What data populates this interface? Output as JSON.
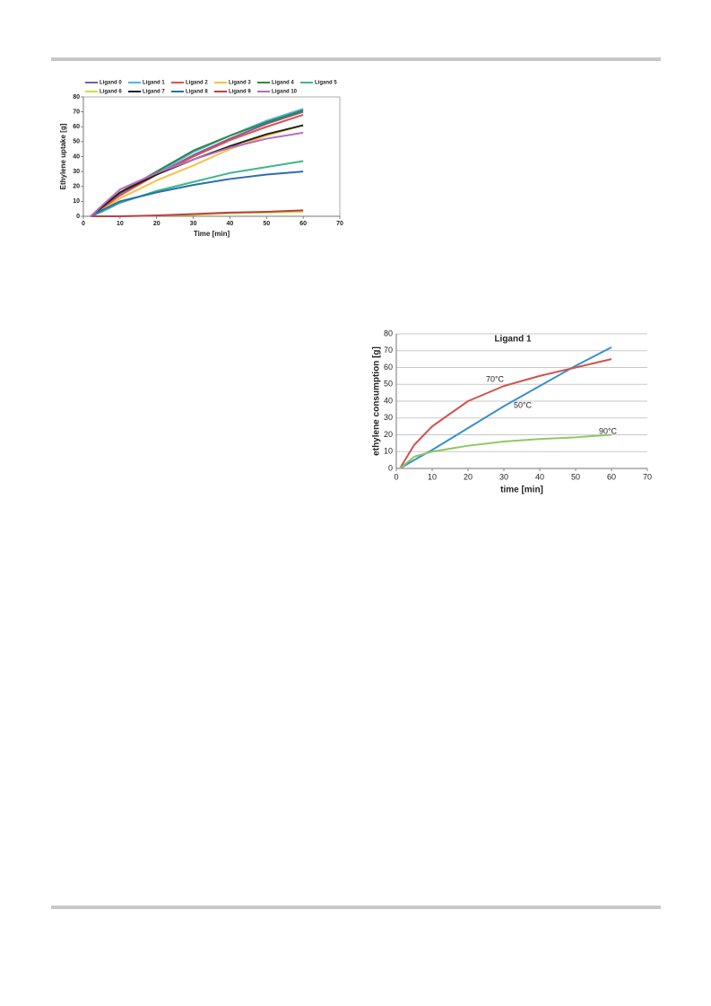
{
  "chart_data": [
    {
      "type": "line",
      "xlabel": "Time [min]",
      "ylabel": "Ethylene uptake [g]",
      "x": [
        2,
        5,
        10,
        20,
        30,
        40,
        50,
        60
      ],
      "xlim": [
        0,
        70
      ],
      "xticks": [
        0,
        10,
        20,
        30,
        40,
        50,
        60,
        70
      ],
      "ylim": [
        0,
        80
      ],
      "yticks": [
        0,
        10,
        20,
        30,
        40,
        50,
        60,
        70,
        80
      ],
      "grid": false,
      "legend": "top",
      "series": [
        {
          "name": "Ligand 0",
          "color": "#7b5ea7",
          "values": [
            0,
            5,
            15,
            28,
            41,
            52,
            62,
            70
          ]
        },
        {
          "name": "Ligand 1",
          "color": "#4fb3e8",
          "values": [
            0,
            5,
            14,
            29,
            43,
            54,
            64,
            72
          ]
        },
        {
          "name": "Ligand 2",
          "color": "#e0504a",
          "values": [
            0,
            5,
            14,
            28,
            40,
            51,
            60,
            68
          ]
        },
        {
          "name": "Ligand 3",
          "color": "#f5c242",
          "values": [
            0,
            4,
            12,
            24,
            34,
            45,
            54,
            61
          ]
        },
        {
          "name": "Ligand 4",
          "color": "#2e8a3e",
          "values": [
            0,
            6,
            16,
            30,
            44,
            54,
            63,
            71
          ]
        },
        {
          "name": "Ligand 5",
          "color": "#3cb98a",
          "values": [
            0,
            3,
            9,
            17,
            23,
            29,
            33,
            37
          ]
        },
        {
          "name": "Ligand 6",
          "color": "#d4dc3a",
          "values": [
            0,
            0,
            0,
            0.5,
            1,
            2,
            2.5,
            3
          ]
        },
        {
          "name": "Ligand 7",
          "color": "#222222",
          "values": [
            0,
            6,
            16,
            28,
            38,
            47,
            55,
            61
          ]
        },
        {
          "name": "Ligand 8",
          "color": "#2a6db5",
          "values": [
            0,
            4,
            10,
            16,
            21,
            25,
            28,
            30
          ]
        },
        {
          "name": "Ligand 9",
          "color": "#b5424a",
          "values": [
            0,
            0,
            0,
            0.5,
            1.5,
            2.5,
            3,
            4
          ]
        },
        {
          "name": "Ligand 10",
          "color": "#b56cc0",
          "values": [
            0,
            7,
            18,
            29,
            38,
            46,
            52,
            56
          ]
        }
      ]
    },
    {
      "type": "line",
      "title": "Ligand 1",
      "xlabel": "time [min]",
      "ylabel": "ethylene consumption [g]",
      "x": [
        1,
        5,
        10,
        20,
        30,
        40,
        50,
        60
      ],
      "xlim": [
        0,
        70
      ],
      "xticks": [
        0,
        10,
        20,
        30,
        40,
        50,
        60,
        70
      ],
      "ylim": [
        0,
        80
      ],
      "yticks": [
        0,
        10,
        20,
        30,
        40,
        50,
        60,
        70,
        80
      ],
      "grid": true,
      "series": [
        {
          "name": "50°C",
          "color": "#3a8fd0",
          "values": [
            0,
            5,
            11,
            24,
            37,
            49,
            61,
            72
          ]
        },
        {
          "name": "70°C",
          "color": "#cf5450",
          "values": [
            0,
            14,
            25,
            40,
            49,
            55,
            60,
            65
          ]
        },
        {
          "name": "90°C",
          "color": "#8fc760",
          "values": [
            0,
            7,
            10,
            13.5,
            16,
            17.5,
            18.5,
            20
          ]
        }
      ]
    }
  ]
}
